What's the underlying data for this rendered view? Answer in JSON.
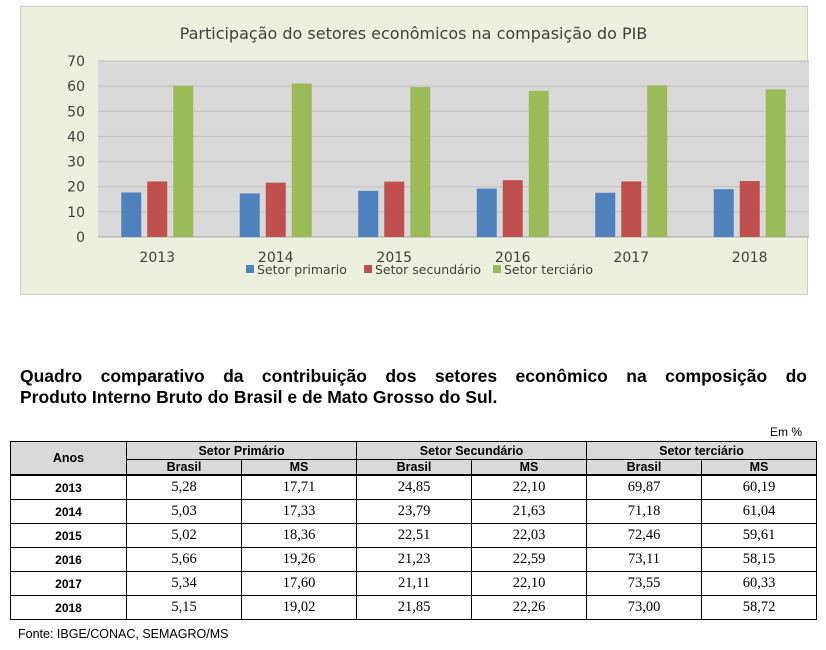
{
  "chart_data": {
    "type": "bar",
    "title": "Participação do setores econômicos na compasição do PIB",
    "categories": [
      "2013",
      "2014",
      "2015",
      "2016",
      "2017",
      "2018"
    ],
    "series": [
      {
        "name": "Setor primario",
        "color": "#4f81bd",
        "values": [
          17.71,
          17.33,
          18.36,
          19.26,
          17.6,
          19.02
        ]
      },
      {
        "name": "Setor secundário",
        "color": "#c0504d",
        "values": [
          22.1,
          21.63,
          22.03,
          22.59,
          22.1,
          22.26
        ]
      },
      {
        "name": "Setor terciário",
        "color": "#9bbb59",
        "values": [
          60.19,
          61.04,
          59.61,
          58.15,
          60.33,
          58.72
        ]
      }
    ],
    "ylim": [
      0,
      70
    ],
    "yticks": [
      "0",
      "10",
      "20",
      "30",
      "40",
      "50",
      "60",
      "70"
    ],
    "grid": true,
    "legend": "bottom",
    "plot_background": "#d9d9d9",
    "chart_background": "#ebf1de"
  },
  "table": {
    "heading": {
      "line1": "Quadro comparativo da contribuição dos setores econômico na composição do",
      "line2": "Produto Interno Bruto do Brasil e de Mato Grosso do Sul."
    },
    "unit_label": "Em %",
    "anos_header": "Anos",
    "groups": [
      "Setor Primário",
      "Setor Secundário",
      "Setor terciário"
    ],
    "subheaders": [
      "Brasil",
      "MS",
      "Brasil",
      "MS",
      "Brasil",
      "MS"
    ],
    "rows": [
      {
        "year": "2013",
        "cells": [
          "5,28",
          "17,71",
          "24,85",
          "22,10",
          "69,87",
          "60,19"
        ]
      },
      {
        "year": "2014",
        "cells": [
          "5,03",
          "17,33",
          "23,79",
          "21,63",
          "71,18",
          "61,04"
        ]
      },
      {
        "year": "2015",
        "cells": [
          "5,02",
          "18,36",
          "22,51",
          "22,03",
          "72,46",
          "59,61"
        ]
      },
      {
        "year": "2016",
        "cells": [
          "5,66",
          "19,26",
          "21,23",
          "22,59",
          "73,11",
          "58,15"
        ]
      },
      {
        "year": "2017",
        "cells": [
          "5,34",
          "17,60",
          "21,11",
          "22,10",
          "73,55",
          "60,33"
        ]
      },
      {
        "year": "2018",
        "cells": [
          "5,15",
          "19,02",
          "21,85",
          "22,26",
          "73,00",
          "58,72"
        ]
      }
    ],
    "source": "Fonte: IBGE/CONAC, SEMAGRO/MS"
  }
}
